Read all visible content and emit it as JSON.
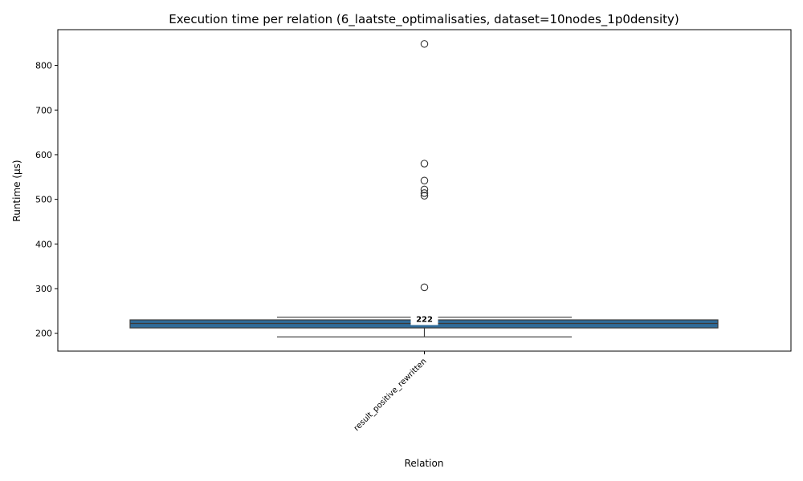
{
  "chart_data": {
    "type": "box",
    "title": "Execution time per relation (6_laatste_optimalisaties, dataset=10nodes_1p0density)",
    "xlabel": "Relation",
    "ylabel": "Runtime (µs)",
    "categories": [
      "result_positive_rewritten"
    ],
    "ylim": [
      160,
      880
    ],
    "yticks": [
      200,
      300,
      400,
      500,
      600,
      700,
      800
    ],
    "grid": false,
    "box": {
      "category": "result_positive_rewritten",
      "whisker_low": 192,
      "q1": 212,
      "median": 222,
      "q3": 230,
      "whisker_high": 236,
      "outliers": [
        303,
        508,
        514,
        522,
        542,
        580,
        848
      ]
    },
    "median_label": "222",
    "colors": {
      "box_fill": "#2f6b98",
      "box_edge": "#3a3a3a",
      "outlier_edge": "#333333"
    }
  }
}
